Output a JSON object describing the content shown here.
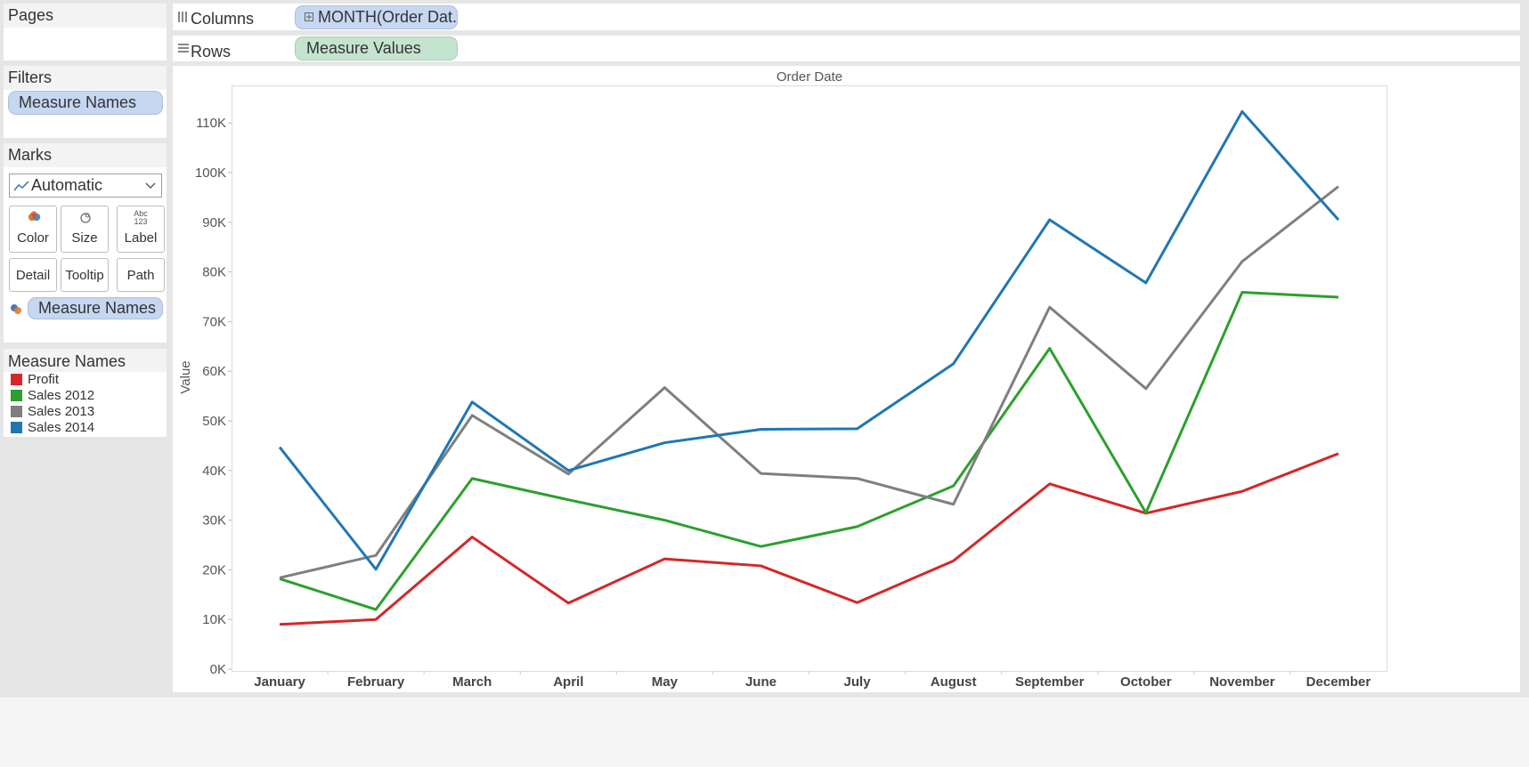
{
  "sidebar": {
    "pages_title": "Pages",
    "filters_title": "Filters",
    "filter_pill": "Measure Names",
    "marks_title": "Marks",
    "mark_type": "Automatic",
    "mark_buttons": [
      {
        "label": "Color",
        "icon": "color-icon"
      },
      {
        "label": "Size",
        "icon": "size-icon"
      },
      {
        "label": "Label",
        "icon": "label-icon",
        "icon_text_top": "Abc",
        "icon_text_bottom": "123"
      },
      {
        "label": "Detail",
        "icon": ""
      },
      {
        "label": "Tooltip",
        "icon": ""
      },
      {
        "label": "Path",
        "icon": ""
      }
    ],
    "color_pill": "Measure Names",
    "legend_title": "Measure Names",
    "legend_items": [
      {
        "label": "Profit",
        "color": "#d62728"
      },
      {
        "label": "Sales 2012",
        "color": "#2ca02c"
      },
      {
        "label": "Sales 2013",
        "color": "#7f7f7f"
      },
      {
        "label": "Sales 2014",
        "color": "#1f77b4"
      }
    ]
  },
  "shelves": {
    "columns_label": "Columns",
    "columns_pill": "MONTH(Order Dat..",
    "rows_label": "Rows",
    "rows_pill": "Measure Values"
  },
  "chart_data": {
    "type": "line",
    "title": "Order Date",
    "xlabel": "",
    "ylabel": "Value",
    "categories": [
      "January",
      "February",
      "March",
      "April",
      "May",
      "June",
      "July",
      "August",
      "September",
      "October",
      "November",
      "December"
    ],
    "ylim": [
      0,
      116000
    ],
    "yticks": [
      0,
      10000,
      20000,
      30000,
      40000,
      50000,
      60000,
      70000,
      80000,
      90000,
      100000,
      110000
    ],
    "ytick_labels": [
      "0K",
      "10K",
      "20K",
      "30K",
      "40K",
      "50K",
      "60K",
      "70K",
      "80K",
      "90K",
      "100K",
      "110K"
    ],
    "grid": false,
    "legend": "left",
    "series": [
      {
        "name": "Profit",
        "color": "#d62728",
        "values": [
          9000,
          10000,
          26600,
          13300,
          22200,
          20800,
          13400,
          21800,
          37300,
          31400,
          35800,
          43400
        ]
      },
      {
        "name": "Sales 2012",
        "color": "#2ca02c",
        "values": [
          18200,
          12000,
          38400,
          34100,
          30000,
          24700,
          28700,
          36900,
          64600,
          31500,
          75900,
          74900
        ]
      },
      {
        "name": "Sales 2013",
        "color": "#7f7f7f",
        "values": [
          18400,
          22900,
          51100,
          39300,
          56700,
          39400,
          38400,
          33200,
          72900,
          56500,
          82100,
          97200
        ]
      },
      {
        "name": "Sales 2014",
        "color": "#1f77b4",
        "values": [
          44700,
          20100,
          53800,
          40000,
          45600,
          48300,
          48400,
          61500,
          90500,
          77800,
          112300,
          90500
        ]
      }
    ]
  }
}
